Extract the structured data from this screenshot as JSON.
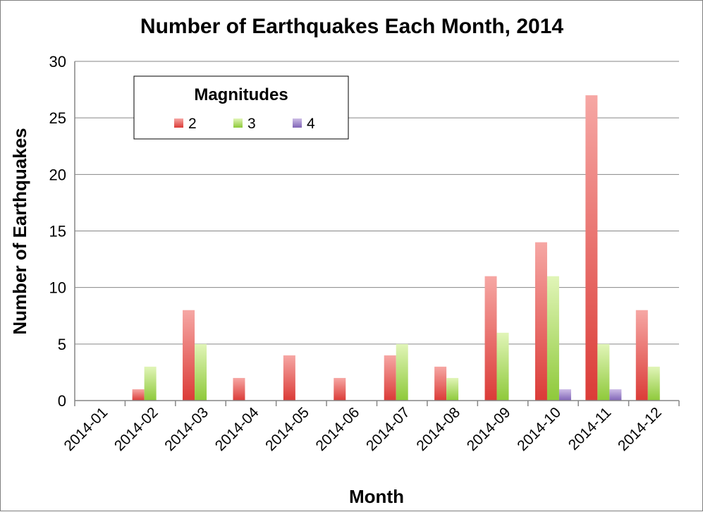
{
  "chart_data": {
    "type": "bar",
    "title": "Number of Earthquakes Each Month, 2014",
    "xlabel": "Month",
    "ylabel": "Number of Earthquakes",
    "ylim": [
      0,
      30
    ],
    "yticks": [
      "0",
      "5",
      "10",
      "15",
      "20",
      "25",
      "30"
    ],
    "grid": true,
    "legend": {
      "title": "Magnitudes",
      "placement": "top-left"
    },
    "categories": [
      "2014-01",
      "2014-02",
      "2014-03",
      "2014-04",
      "2014-05",
      "2014-06",
      "2014-07",
      "2014-08",
      "2014-09",
      "2014-10",
      "2014-11",
      "2014-12"
    ],
    "series": [
      {
        "name": "2",
        "color": "#e8524f",
        "values": [
          0,
          1,
          8,
          2,
          4,
          2,
          4,
          3,
          11,
          14,
          27,
          8
        ]
      },
      {
        "name": "3",
        "color": "#a6d84b",
        "values": [
          0,
          3,
          5,
          0,
          0,
          0,
          5,
          2,
          6,
          11,
          5,
          3
        ]
      },
      {
        "name": "4",
        "color": "#9b7fc8",
        "values": [
          0,
          0,
          0,
          0,
          0,
          0,
          0,
          0,
          0,
          1,
          1,
          0
        ]
      }
    ]
  }
}
